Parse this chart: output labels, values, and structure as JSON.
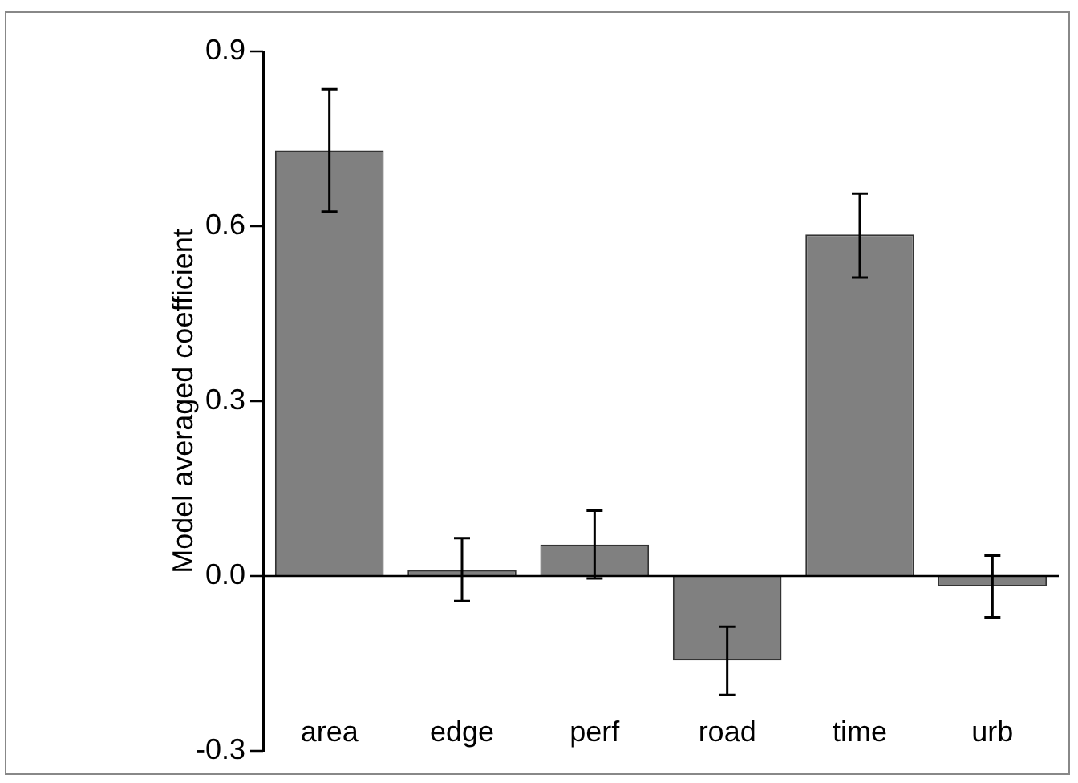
{
  "chart_data": {
    "type": "bar",
    "ylabel": "Model averaged coefficient",
    "categories": [
      "area",
      "edge",
      "perf",
      "road",
      "time",
      "urb"
    ],
    "values": [
      0.73,
      0.01,
      0.054,
      -0.145,
      0.586,
      -0.018
    ],
    "errors": [
      [
        0.625,
        0.835
      ],
      [
        -0.043,
        0.065
      ],
      [
        -0.004,
        0.112
      ],
      [
        -0.204,
        -0.087
      ],
      [
        0.512,
        0.656
      ],
      [
        -0.071,
        0.035
      ]
    ],
    "color": "#808080",
    "ylim": [
      -0.3,
      0.9
    ],
    "yticks": [
      {
        "value": -0.3,
        "label": "-0.3"
      },
      {
        "value": 0,
        "label": "0.0"
      },
      {
        "value": 0.3,
        "label": "0.3"
      },
      {
        "value": 0.6,
        "label": "0.6"
      },
      {
        "value": 0.9,
        "label": "0.9"
      }
    ]
  }
}
